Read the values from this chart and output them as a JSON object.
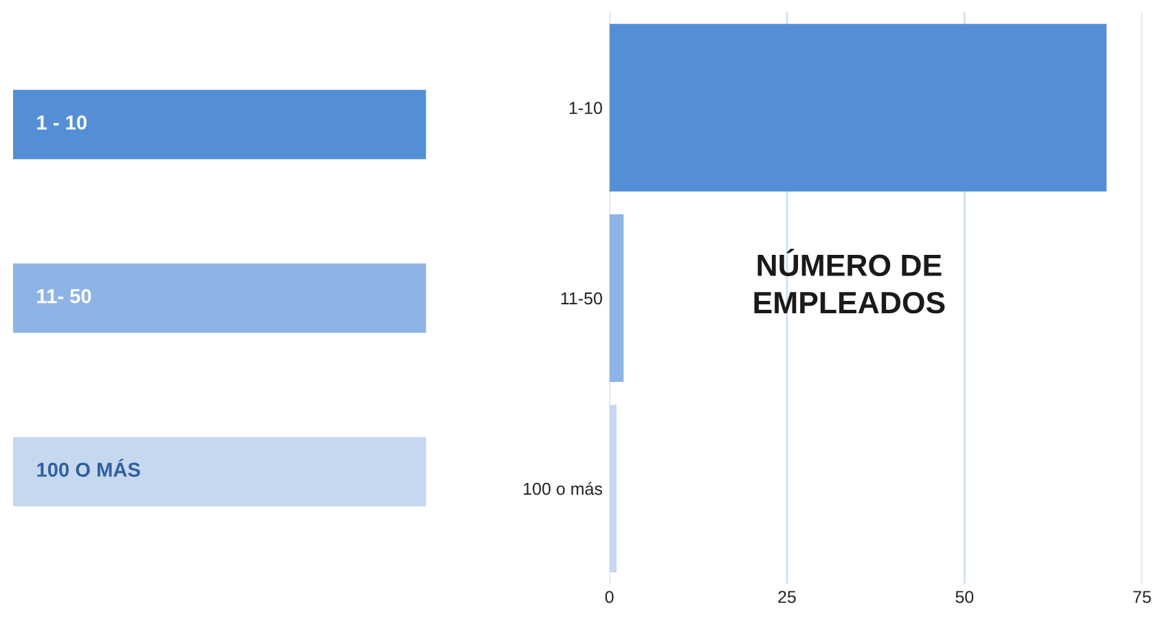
{
  "chart_data": {
    "type": "bar",
    "orientation": "horizontal",
    "title": "NÚMERO DE EMPLEADOS",
    "categories": [
      "1-10",
      "11-50",
      "100 o más"
    ],
    "series": [
      {
        "name": "1 - 10",
        "color": "#548fd6",
        "values": [
          70,
          null,
          null
        ]
      },
      {
        "name": "11- 50",
        "color": "#8db4e5",
        "values": [
          null,
          2,
          null
        ]
      },
      {
        "name": "100 O MÁS",
        "color": "#c5d8f0",
        "values": [
          null,
          null,
          1
        ]
      }
    ],
    "xlim": [
      0,
      75
    ],
    "xticks": [
      0,
      25,
      50,
      75
    ],
    "grid": "x",
    "legend": "left"
  }
}
